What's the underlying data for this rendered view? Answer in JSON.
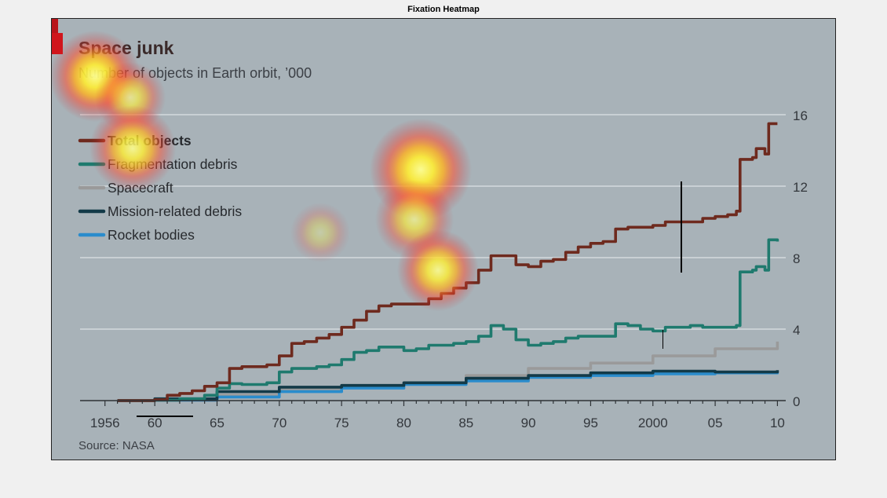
{
  "figure": {
    "title": "Fixation Heatmap"
  },
  "chart_data": {
    "type": "line",
    "title": "Space junk",
    "subtitle": "Number of objects in Earth orbit, ’000",
    "source": "Source: NASA",
    "xlabel": "",
    "ylabel": "",
    "x_ticks": [
      {
        "value": 1956,
        "label": "1956"
      },
      {
        "value": 1960,
        "label": "60"
      },
      {
        "value": 1965,
        "label": "65"
      },
      {
        "value": 1970,
        "label": "70"
      },
      {
        "value": 1975,
        "label": "75"
      },
      {
        "value": 1980,
        "label": "80"
      },
      {
        "value": 1985,
        "label": "85"
      },
      {
        "value": 1990,
        "label": "90"
      },
      {
        "value": 1995,
        "label": "95"
      },
      {
        "value": 2000,
        "label": "2000"
      },
      {
        "value": 2005,
        "label": "05"
      },
      {
        "value": 2010,
        "label": "10"
      }
    ],
    "y_ticks": [
      0,
      4,
      8,
      12,
      16
    ],
    "xlim": [
      1954,
      2010
    ],
    "ylim": [
      0,
      16
    ],
    "grid": true,
    "legend_position": "top-left",
    "series": [
      {
        "name": "Total objects",
        "color": "#6e2a1e",
        "points": [
          [
            1957,
            0
          ],
          [
            1960,
            0.05
          ],
          [
            1961,
            0.3
          ],
          [
            1962,
            0.4
          ],
          [
            1963,
            0.55
          ],
          [
            1964,
            0.8
          ],
          [
            1965,
            1.0
          ],
          [
            1966,
            1.8
          ],
          [
            1967,
            1.9
          ],
          [
            1968,
            1.9
          ],
          [
            1969,
            2.0
          ],
          [
            1970,
            2.5
          ],
          [
            1971,
            3.2
          ],
          [
            1972,
            3.3
          ],
          [
            1973,
            3.5
          ],
          [
            1974,
            3.7
          ],
          [
            1975,
            4.1
          ],
          [
            1976,
            4.5
          ],
          [
            1977,
            5.0
          ],
          [
            1978,
            5.3
          ],
          [
            1979,
            5.4
          ],
          [
            1980,
            5.4
          ],
          [
            1981,
            5.4
          ],
          [
            1982,
            5.7
          ],
          [
            1983,
            6.0
          ],
          [
            1984,
            6.3
          ],
          [
            1985,
            6.6
          ],
          [
            1986,
            7.3
          ],
          [
            1987,
            8.1
          ],
          [
            1988,
            8.1
          ],
          [
            1989,
            7.6
          ],
          [
            1990,
            7.5
          ],
          [
            1991,
            7.8
          ],
          [
            1992,
            7.9
          ],
          [
            1993,
            8.3
          ],
          [
            1994,
            8.6
          ],
          [
            1995,
            8.8
          ],
          [
            1996,
            8.9
          ],
          [
            1997,
            9.6
          ],
          [
            1998,
            9.7
          ],
          [
            1999,
            9.7
          ],
          [
            2000,
            9.8
          ],
          [
            2001,
            10.0
          ],
          [
            2002,
            10.0
          ],
          [
            2003,
            10.0
          ],
          [
            2004,
            10.2
          ],
          [
            2005,
            10.3
          ],
          [
            2006,
            10.4
          ],
          [
            2006.7,
            10.6
          ],
          [
            2007,
            13.5
          ],
          [
            2008,
            13.6
          ],
          [
            2008.3,
            14.1
          ],
          [
            2009,
            13.8
          ],
          [
            2009.3,
            15.5
          ],
          [
            2010,
            15.5
          ]
        ]
      },
      {
        "name": "Fragmentation debris",
        "color": "#1f7a6e",
        "points": [
          [
            1957,
            0
          ],
          [
            1960,
            0.02
          ],
          [
            1962,
            0.1
          ],
          [
            1964,
            0.3
          ],
          [
            1965,
            0.7
          ],
          [
            1966,
            0.95
          ],
          [
            1967,
            0.9
          ],
          [
            1968,
            0.9
          ],
          [
            1969,
            1.0
          ],
          [
            1970,
            1.6
          ],
          [
            1971,
            1.8
          ],
          [
            1972,
            1.8
          ],
          [
            1973,
            1.9
          ],
          [
            1974,
            2.0
          ],
          [
            1975,
            2.3
          ],
          [
            1976,
            2.7
          ],
          [
            1977,
            2.8
          ],
          [
            1978,
            3.0
          ],
          [
            1979,
            3.0
          ],
          [
            1980,
            2.8
          ],
          [
            1981,
            2.9
          ],
          [
            1982,
            3.1
          ],
          [
            1983,
            3.1
          ],
          [
            1984,
            3.2
          ],
          [
            1985,
            3.3
          ],
          [
            1986,
            3.6
          ],
          [
            1987,
            4.2
          ],
          [
            1988,
            4.0
          ],
          [
            1989,
            3.4
          ],
          [
            1990,
            3.1
          ],
          [
            1991,
            3.2
          ],
          [
            1992,
            3.3
          ],
          [
            1993,
            3.5
          ],
          [
            1994,
            3.6
          ],
          [
            1995,
            3.6
          ],
          [
            1996,
            3.6
          ],
          [
            1997,
            4.3
          ],
          [
            1998,
            4.2
          ],
          [
            1999,
            4.0
          ],
          [
            2000,
            3.9
          ],
          [
            2001,
            4.1
          ],
          [
            2002,
            4.1
          ],
          [
            2003,
            4.2
          ],
          [
            2004,
            4.1
          ],
          [
            2005,
            4.1
          ],
          [
            2006,
            4.1
          ],
          [
            2006.7,
            4.2
          ],
          [
            2007,
            7.2
          ],
          [
            2008,
            7.3
          ],
          [
            2008.3,
            7.5
          ],
          [
            2009,
            7.3
          ],
          [
            2009.3,
            9.0
          ],
          [
            2010,
            8.9
          ]
        ]
      },
      {
        "name": "Spacecraft",
        "color": "#9a9a9a",
        "points": [
          [
            1957,
            0
          ],
          [
            1960,
            0.05
          ],
          [
            1965,
            0.3
          ],
          [
            1970,
            0.6
          ],
          [
            1975,
            0.85
          ],
          [
            1980,
            1.0
          ],
          [
            1985,
            1.4
          ],
          [
            1990,
            1.8
          ],
          [
            1995,
            2.1
          ],
          [
            2000,
            2.5
          ],
          [
            2005,
            2.9
          ],
          [
            2010,
            3.3
          ]
        ]
      },
      {
        "name": "Mission-related debris",
        "color": "#133a48",
        "points": [
          [
            1957,
            0
          ],
          [
            1960,
            0.1
          ],
          [
            1965,
            0.5
          ],
          [
            1970,
            0.75
          ],
          [
            1975,
            0.85
          ],
          [
            1980,
            1.0
          ],
          [
            1985,
            1.25
          ],
          [
            1990,
            1.4
          ],
          [
            1995,
            1.55
          ],
          [
            2000,
            1.65
          ],
          [
            2005,
            1.6
          ],
          [
            2010,
            1.7
          ]
        ]
      },
      {
        "name": "Rocket bodies",
        "color": "#2a8ccc",
        "points": [
          [
            1957,
            0
          ],
          [
            1960,
            0.02
          ],
          [
            1965,
            0.2
          ],
          [
            1970,
            0.5
          ],
          [
            1975,
            0.7
          ],
          [
            1980,
            0.9
          ],
          [
            1985,
            1.1
          ],
          [
            1990,
            1.3
          ],
          [
            1995,
            1.4
          ],
          [
            2000,
            1.5
          ],
          [
            2005,
            1.55
          ],
          [
            2010,
            1.65
          ]
        ]
      }
    ]
  },
  "heatmap": {
    "blobs": [
      {
        "cx": 55,
        "cy": 73,
        "r": 58,
        "intensity": 1.0
      },
      {
        "cx": 100,
        "cy": 100,
        "r": 45,
        "intensity": 0.7
      },
      {
        "cx": 103,
        "cy": 165,
        "r": 55,
        "intensity": 0.9
      },
      {
        "cx": 470,
        "cy": 192,
        "r": 65,
        "intensity": 1.0
      },
      {
        "cx": 462,
        "cy": 255,
        "r": 50,
        "intensity": 0.7
      },
      {
        "cx": 492,
        "cy": 320,
        "r": 52,
        "intensity": 0.9
      },
      {
        "cx": 342,
        "cy": 272,
        "r": 38,
        "intensity": 0.35
      }
    ]
  }
}
